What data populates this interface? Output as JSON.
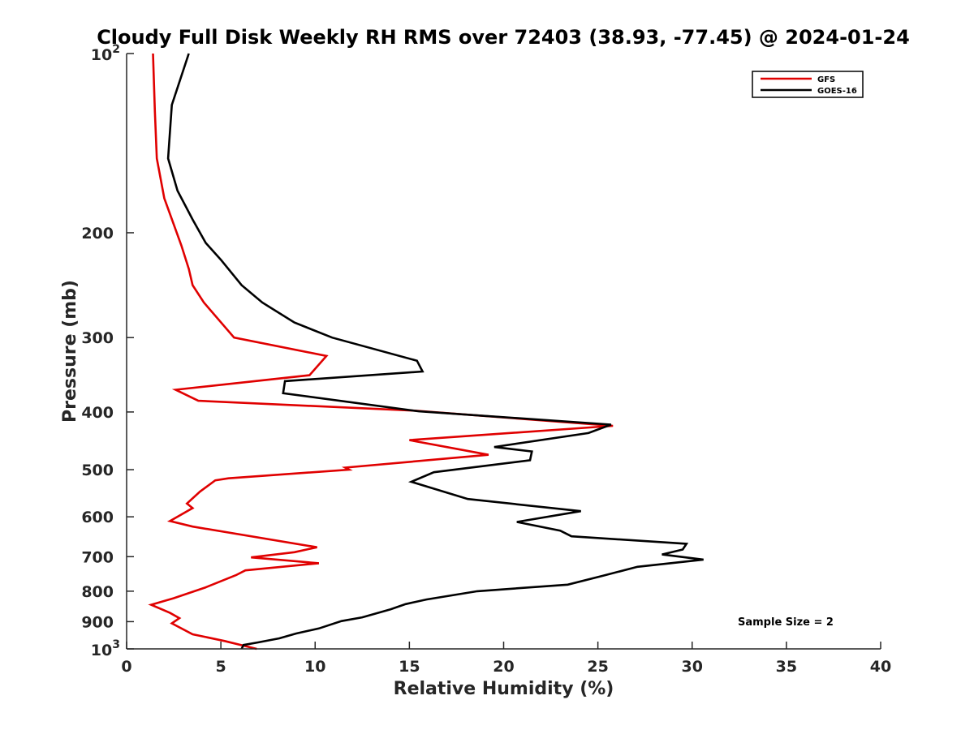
{
  "chart_data": {
    "type": "line",
    "title": "Cloudy Full Disk Weekly RH RMS over 72403 (38.93, -77.45) @ 2024-01-24",
    "xlabel": "Relative Humidity (%)",
    "ylabel": "Pressure (mb)",
    "xlim": [
      0,
      40
    ],
    "ylim": [
      100,
      1000
    ],
    "yscale": "log",
    "y_reversed": true,
    "xticks": [
      {
        "value": 0,
        "label": "0"
      },
      {
        "value": 5,
        "label": "5"
      },
      {
        "value": 10,
        "label": "10"
      },
      {
        "value": 15,
        "label": "15"
      },
      {
        "value": 20,
        "label": "20"
      },
      {
        "value": 25,
        "label": "25"
      },
      {
        "value": 30,
        "label": "30"
      },
      {
        "value": 35,
        "label": "35"
      },
      {
        "value": 40,
        "label": "40"
      }
    ],
    "yticks": [
      {
        "value": 100,
        "label": "10",
        "sup": "2"
      },
      {
        "value": 200,
        "label": "200"
      },
      {
        "value": 300,
        "label": "300"
      },
      {
        "value": 400,
        "label": "400"
      },
      {
        "value": 500,
        "label": "500"
      },
      {
        "value": 600,
        "label": "600"
      },
      {
        "value": 700,
        "label": "700"
      },
      {
        "value": 800,
        "label": "800"
      },
      {
        "value": 900,
        "label": "900"
      },
      {
        "value": 1000,
        "label": "10",
        "sup": "3"
      }
    ],
    "grid": false,
    "legend_position": "top-right",
    "annotation": "Sample Size = 2",
    "series": [
      {
        "name": "GFS",
        "color": "#e00000",
        "points": [
          [
            1.4,
            100
          ],
          [
            1.5,
            125
          ],
          [
            1.6,
            150
          ],
          [
            2.0,
            175
          ],
          [
            2.9,
            210
          ],
          [
            3.3,
            230
          ],
          [
            3.5,
            245
          ],
          [
            4.1,
            262
          ],
          [
            5.7,
            300
          ],
          [
            10.6,
            322
          ],
          [
            9.7,
            347
          ],
          [
            2.6,
            367
          ],
          [
            3.8,
            383
          ],
          [
            15.3,
            398
          ],
          [
            25.8,
            422
          ],
          [
            15.0,
            446
          ],
          [
            19.2,
            472
          ],
          [
            11.6,
            496
          ],
          [
            11.8,
            500
          ],
          [
            5.4,
            517
          ],
          [
            4.7,
            521
          ],
          [
            3.9,
            544
          ],
          [
            3.2,
            570
          ],
          [
            3.5,
            580
          ],
          [
            2.3,
            610
          ],
          [
            3.5,
            623
          ],
          [
            10.1,
            675
          ],
          [
            8.9,
            688
          ],
          [
            6.6,
            702
          ],
          [
            10.2,
            718
          ],
          [
            6.3,
            738
          ],
          [
            5.8,
            752
          ],
          [
            4.2,
            788
          ],
          [
            2.5,
            822
          ],
          [
            1.3,
            843
          ],
          [
            2.3,
            870
          ],
          [
            2.8,
            888
          ],
          [
            2.4,
            906
          ],
          [
            3.5,
            945
          ],
          [
            5.2,
            970
          ],
          [
            6.9,
            1000
          ]
        ]
      },
      {
        "name": "GOES-16",
        "color": "#000000",
        "points": [
          [
            3.3,
            100
          ],
          [
            2.4,
            122
          ],
          [
            2.2,
            150
          ],
          [
            2.7,
            170
          ],
          [
            3.5,
            190
          ],
          [
            4.2,
            208
          ],
          [
            5.0,
            222
          ],
          [
            6.1,
            245
          ],
          [
            7.2,
            262
          ],
          [
            8.9,
            283
          ],
          [
            10.9,
            300
          ],
          [
            15.4,
            328
          ],
          [
            15.7,
            342
          ],
          [
            8.4,
            355
          ],
          [
            8.3,
            372
          ],
          [
            15.5,
            399
          ],
          [
            25.7,
            420
          ],
          [
            24.5,
            434
          ],
          [
            19.5,
            458
          ],
          [
            21.5,
            466
          ],
          [
            21.4,
            482
          ],
          [
            16.3,
            505
          ],
          [
            15.1,
            524
          ],
          [
            18.1,
            560
          ],
          [
            24.1,
            587
          ],
          [
            20.7,
            612
          ],
          [
            23.0,
            633
          ],
          [
            23.6,
            647
          ],
          [
            29.7,
            666
          ],
          [
            29.5,
            681
          ],
          [
            28.4,
            694
          ],
          [
            30.6,
            708
          ],
          [
            27.1,
            728
          ],
          [
            25.3,
            753
          ],
          [
            23.4,
            780
          ],
          [
            18.6,
            800
          ],
          [
            15.9,
            826
          ],
          [
            14.8,
            841
          ],
          [
            14.0,
            858
          ],
          [
            12.5,
            885
          ],
          [
            11.4,
            898
          ],
          [
            10.2,
            924
          ],
          [
            9.0,
            942
          ],
          [
            8.1,
            960
          ],
          [
            7.0,
            975
          ],
          [
            6.2,
            985
          ],
          [
            6.1,
            1000
          ]
        ]
      }
    ]
  }
}
